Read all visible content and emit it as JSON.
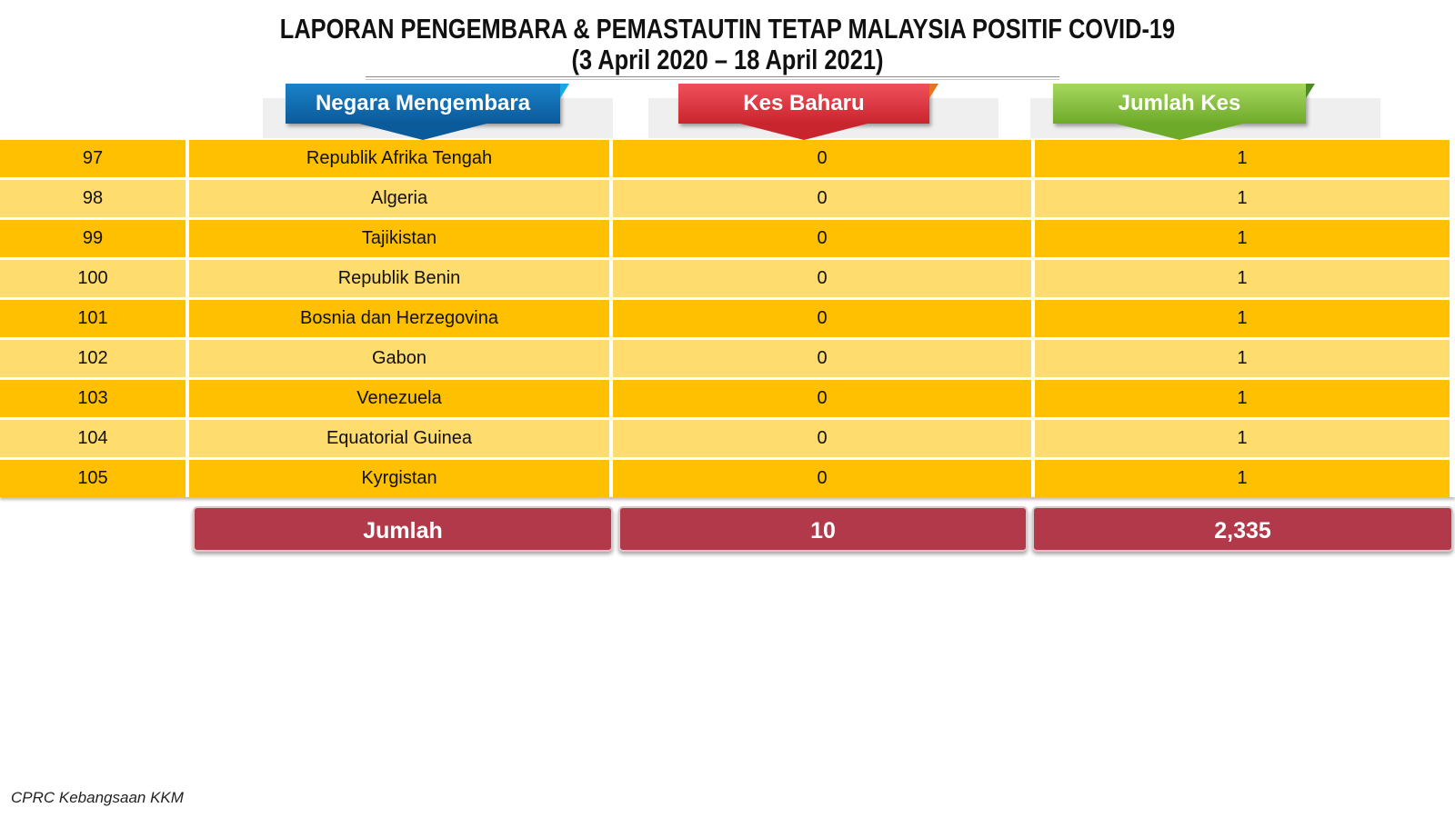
{
  "title": {
    "line1": "LAPORAN PENGEMBARA & PEMASTAUTIN TETAP MALAYSIA POSITIF COVID-19",
    "line2": "(3 April 2020 – 18 April  2021)"
  },
  "headers": {
    "country": "Negara Mengembara",
    "new_cases": "Kes Baharu",
    "total_cases": "Jumlah Kes"
  },
  "rows": [
    {
      "no": "97",
      "country": "Republik Afrika Tengah",
      "new": "0",
      "total": "1"
    },
    {
      "no": "98",
      "country": "Algeria",
      "new": "0",
      "total": "1"
    },
    {
      "no": "99",
      "country": "Tajikistan",
      "new": "0",
      "total": "1"
    },
    {
      "no": "100",
      "country": "Republik Benin",
      "new": "0",
      "total": "1"
    },
    {
      "no": "101",
      "country": "Bosnia dan Herzegovina",
      "new": "0",
      "total": "1"
    },
    {
      "no": "102",
      "country": "Gabon",
      "new": "0",
      "total": "1"
    },
    {
      "no": "103",
      "country": "Venezuela",
      "new": "0",
      "total": "1"
    },
    {
      "no": "104",
      "country": "Equatorial Guinea",
      "new": "0",
      "total": "1"
    },
    {
      "no": "105",
      "country": "Kyrgistan",
      "new": "0",
      "total": "1"
    }
  ],
  "totals": {
    "label": "Jumlah",
    "new": "10",
    "total": "2,335"
  },
  "footer": "CPRC Kebangsaan KKM",
  "colors": {
    "row_dark": "#fec000",
    "row_light": "#fedc6e",
    "totals_bg": "#b2394a",
    "header_blue": "#0b5a9a",
    "header_red": "#c9252f",
    "header_green": "#6eaa2a"
  }
}
